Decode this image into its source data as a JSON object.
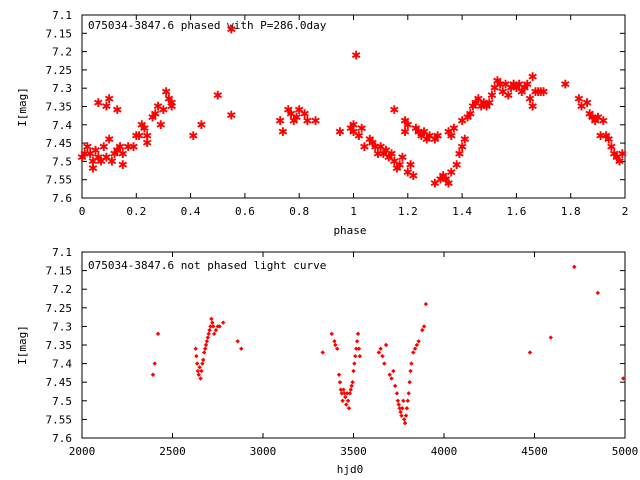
{
  "chart_data": [
    {
      "type": "scatter",
      "title": "075034-3847.6 phased with P=286.0day",
      "xlabel": "phase",
      "ylabel": "I[mag]",
      "xlim": [
        0,
        2
      ],
      "ylim": [
        7.6,
        7.1
      ],
      "y_inverted": true,
      "xticks": [
        "0",
        "0.2",
        "0.4",
        "0.6",
        "0.8",
        "1",
        "1.2",
        "1.4",
        "1.6",
        "1.8",
        "2"
      ],
      "yticks": [
        "7.1",
        "7.15",
        "7.2",
        "7.25",
        "7.3",
        "7.35",
        "7.4",
        "7.45",
        "7.5",
        "7.55",
        "7.6"
      ],
      "grid": false,
      "marker": "star",
      "color": "#ff0000",
      "series": [
        {
          "points": [
            [
              0.0,
              7.49
            ],
            [
              0.01,
              7.48
            ],
            [
              0.02,
              7.46
            ],
            [
              0.03,
              7.48
            ],
            [
              0.04,
              7.5
            ],
            [
              0.04,
              7.52
            ],
            [
              0.05,
              7.47
            ],
            [
              0.06,
              7.49
            ],
            [
              0.06,
              7.34
            ],
            [
              0.07,
              7.5
            ],
            [
              0.08,
              7.46
            ],
            [
              0.09,
              7.49
            ],
            [
              0.09,
              7.35
            ],
            [
              0.1,
              7.33
            ],
            [
              0.1,
              7.44
            ],
            [
              0.11,
              7.5
            ],
            [
              0.12,
              7.48
            ],
            [
              0.13,
              7.36
            ],
            [
              0.13,
              7.47
            ],
            [
              0.14,
              7.46
            ],
            [
              0.15,
              7.51
            ],
            [
              0.15,
              7.48
            ],
            [
              0.17,
              7.46
            ],
            [
              0.19,
              7.46
            ],
            [
              0.2,
              7.43
            ],
            [
              0.21,
              7.43
            ],
            [
              0.22,
              7.4
            ],
            [
              0.23,
              7.41
            ],
            [
              0.24,
              7.45
            ],
            [
              0.24,
              7.43
            ],
            [
              0.26,
              7.38
            ],
            [
              0.27,
              7.37
            ],
            [
              0.28,
              7.35
            ],
            [
              0.29,
              7.4
            ],
            [
              0.3,
              7.36
            ],
            [
              0.31,
              7.31
            ],
            [
              0.32,
              7.33
            ],
            [
              0.33,
              7.35
            ],
            [
              0.33,
              7.34
            ],
            [
              0.41,
              7.43
            ],
            [
              0.44,
              7.4
            ],
            [
              0.5,
              7.32
            ],
            [
              0.55,
              7.375
            ],
            [
              0.55,
              7.14
            ],
            [
              0.73,
              7.39
            ],
            [
              0.74,
              7.42
            ],
            [
              0.76,
              7.36
            ],
            [
              0.77,
              7.37
            ],
            [
              0.78,
              7.39
            ],
            [
              0.79,
              7.38
            ],
            [
              0.8,
              7.36
            ],
            [
              0.82,
              7.37
            ],
            [
              0.83,
              7.39
            ],
            [
              0.86,
              7.39
            ],
            [
              0.95,
              7.42
            ],
            [
              0.99,
              7.41
            ],
            [
              1.0,
              7.4
            ],
            [
              1.0,
              7.42
            ],
            [
              1.01,
              7.21
            ],
            [
              1.02,
              7.43
            ],
            [
              1.03,
              7.41
            ],
            [
              1.04,
              7.46
            ],
            [
              1.06,
              7.44
            ],
            [
              1.07,
              7.45
            ],
            [
              1.08,
              7.46
            ],
            [
              1.09,
              7.48
            ],
            [
              1.1,
              7.46
            ],
            [
              1.11,
              7.48
            ],
            [
              1.12,
              7.47
            ],
            [
              1.13,
              7.49
            ],
            [
              1.14,
              7.48
            ],
            [
              1.15,
              7.5
            ],
            [
              1.15,
              7.36
            ],
            [
              1.16,
              7.52
            ],
            [
              1.17,
              7.51
            ],
            [
              1.18,
              7.49
            ],
            [
              1.19,
              7.42
            ],
            [
              1.19,
              7.39
            ],
            [
              1.2,
              7.4
            ],
            [
              1.2,
              7.53
            ],
            [
              1.21,
              7.51
            ],
            [
              1.22,
              7.54
            ],
            [
              1.23,
              7.41
            ],
            [
              1.24,
              7.42
            ],
            [
              1.25,
              7.43
            ],
            [
              1.26,
              7.42
            ],
            [
              1.27,
              7.44
            ],
            [
              1.28,
              7.43
            ],
            [
              1.3,
              7.44
            ],
            [
              1.3,
              7.56
            ],
            [
              1.31,
              7.43
            ],
            [
              1.32,
              7.55
            ],
            [
              1.33,
              7.54
            ],
            [
              1.34,
              7.55
            ],
            [
              1.35,
              7.56
            ],
            [
              1.35,
              7.42
            ],
            [
              1.36,
              7.53
            ],
            [
              1.36,
              7.43
            ],
            [
              1.37,
              7.41
            ],
            [
              1.38,
              7.51
            ],
            [
              1.39,
              7.48
            ],
            [
              1.4,
              7.46
            ],
            [
              1.4,
              7.39
            ],
            [
              1.41,
              7.44
            ],
            [
              1.42,
              7.38
            ],
            [
              1.43,
              7.37
            ],
            [
              1.44,
              7.35
            ],
            [
              1.45,
              7.34
            ],
            [
              1.46,
              7.33
            ],
            [
              1.47,
              7.35
            ],
            [
              1.48,
              7.34
            ],
            [
              1.49,
              7.35
            ],
            [
              1.5,
              7.34
            ],
            [
              1.51,
              7.32
            ],
            [
              1.52,
              7.3
            ],
            [
              1.53,
              7.28
            ],
            [
              1.54,
              7.29
            ],
            [
              1.55,
              7.31
            ],
            [
              1.56,
              7.29
            ],
            [
              1.57,
              7.32
            ],
            [
              1.58,
              7.3
            ],
            [
              1.59,
              7.29
            ],
            [
              1.6,
              7.3
            ],
            [
              1.61,
              7.29
            ],
            [
              1.62,
              7.31
            ],
            [
              1.63,
              7.3
            ],
            [
              1.64,
              7.29
            ],
            [
              1.65,
              7.33
            ],
            [
              1.66,
              7.27
            ],
            [
              1.66,
              7.35
            ],
            [
              1.67,
              7.31
            ],
            [
              1.68,
              7.31
            ],
            [
              1.69,
              7.31
            ],
            [
              1.7,
              7.31
            ],
            [
              1.78,
              7.29
            ],
            [
              1.83,
              7.33
            ],
            [
              1.84,
              7.35
            ],
            [
              1.86,
              7.34
            ],
            [
              1.87,
              7.37
            ],
            [
              1.88,
              7.38
            ],
            [
              1.89,
              7.39
            ],
            [
              1.9,
              7.38
            ],
            [
              1.91,
              7.43
            ],
            [
              1.92,
              7.39
            ],
            [
              1.93,
              7.43
            ],
            [
              1.94,
              7.44
            ],
            [
              1.95,
              7.46
            ],
            [
              1.96,
              7.48
            ],
            [
              1.97,
              7.49
            ],
            [
              1.98,
              7.5
            ],
            [
              1.99,
              7.48
            ]
          ]
        }
      ]
    },
    {
      "type": "scatter",
      "title": "075034-3847.6 not phased light curve",
      "xlabel": "hjd0",
      "ylabel": "I[mag]",
      "xlim": [
        2000,
        5000
      ],
      "ylim": [
        7.6,
        7.1
      ],
      "y_inverted": true,
      "xticks": [
        "2000",
        "2500",
        "3000",
        "3500",
        "4000",
        "4500",
        "5000"
      ],
      "yticks": [
        "7.1",
        "7.15",
        "7.2",
        "7.25",
        "7.3",
        "7.35",
        "7.4",
        "7.45",
        "7.5",
        "7.55",
        "7.6"
      ],
      "grid": false,
      "marker": "diamond",
      "color": "#ff0000",
      "series": [
        {
          "points": [
            [
              2392,
              7.43
            ],
            [
              2402,
              7.4
            ],
            [
              2420,
              7.32
            ],
            [
              2628,
              7.36
            ],
            [
              2632,
              7.38
            ],
            [
              2636,
              7.4
            ],
            [
              2640,
              7.42
            ],
            [
              2645,
              7.43
            ],
            [
              2650,
              7.41
            ],
            [
              2655,
              7.44
            ],
            [
              2660,
              7.42
            ],
            [
              2665,
              7.4
            ],
            [
              2670,
              7.39
            ],
            [
              2675,
              7.37
            ],
            [
              2680,
              7.36
            ],
            [
              2685,
              7.35
            ],
            [
              2690,
              7.34
            ],
            [
              2695,
              7.33
            ],
            [
              2700,
              7.32
            ],
            [
              2705,
              7.31
            ],
            [
              2710,
              7.3
            ],
            [
              2715,
              7.28
            ],
            [
              2720,
              7.29
            ],
            [
              2725,
              7.3
            ],
            [
              2730,
              7.32
            ],
            [
              2740,
              7.31
            ],
            [
              2750,
              7.3
            ],
            [
              2760,
              7.3
            ],
            [
              2780,
              7.29
            ],
            [
              2860,
              7.34
            ],
            [
              2880,
              7.36
            ],
            [
              3330,
              7.37
            ],
            [
              3380,
              7.32
            ],
            [
              3395,
              7.34
            ],
            [
              3400,
              7.35
            ],
            [
              3410,
              7.36
            ],
            [
              3420,
              7.43
            ],
            [
              3425,
              7.45
            ],
            [
              3430,
              7.47
            ],
            [
              3435,
              7.48
            ],
            [
              3440,
              7.5
            ],
            [
              3445,
              7.47
            ],
            [
              3450,
              7.48
            ],
            [
              3455,
              7.49
            ],
            [
              3460,
              7.51
            ],
            [
              3465,
              7.48
            ],
            [
              3470,
              7.5
            ],
            [
              3475,
              7.52
            ],
            [
              3480,
              7.48
            ],
            [
              3485,
              7.47
            ],
            [
              3490,
              7.46
            ],
            [
              3495,
              7.45
            ],
            [
              3500,
              7.42
            ],
            [
              3505,
              7.4
            ],
            [
              3510,
              7.38
            ],
            [
              3515,
              7.36
            ],
            [
              3520,
              7.34
            ],
            [
              3525,
              7.32
            ],
            [
              3530,
              7.36
            ],
            [
              3535,
              7.38
            ],
            [
              3640,
              7.37
            ],
            [
              3650,
              7.36
            ],
            [
              3660,
              7.38
            ],
            [
              3670,
              7.4
            ],
            [
              3680,
              7.35
            ],
            [
              3700,
              7.43
            ],
            [
              3710,
              7.44
            ],
            [
              3720,
              7.42
            ],
            [
              3730,
              7.46
            ],
            [
              3740,
              7.48
            ],
            [
              3745,
              7.5
            ],
            [
              3750,
              7.51
            ],
            [
              3755,
              7.52
            ],
            [
              3760,
              7.53
            ],
            [
              3765,
              7.54
            ],
            [
              3770,
              7.52
            ],
            [
              3775,
              7.5
            ],
            [
              3780,
              7.55
            ],
            [
              3785,
              7.56
            ],
            [
              3790,
              7.54
            ],
            [
              3795,
              7.52
            ],
            [
              3800,
              7.5
            ],
            [
              3805,
              7.48
            ],
            [
              3810,
              7.45
            ],
            [
              3815,
              7.42
            ],
            [
              3820,
              7.4
            ],
            [
              3830,
              7.37
            ],
            [
              3840,
              7.36
            ],
            [
              3850,
              7.35
            ],
            [
              3860,
              7.34
            ],
            [
              3880,
              7.31
            ],
            [
              3890,
              7.3
            ],
            [
              3900,
              7.24
            ],
            [
              4475,
              7.37
            ],
            [
              4590,
              7.33
            ],
            [
              4720,
              7.14
            ],
            [
              4850,
              7.21
            ],
            [
              4990,
              7.44
            ]
          ]
        }
      ]
    }
  ]
}
